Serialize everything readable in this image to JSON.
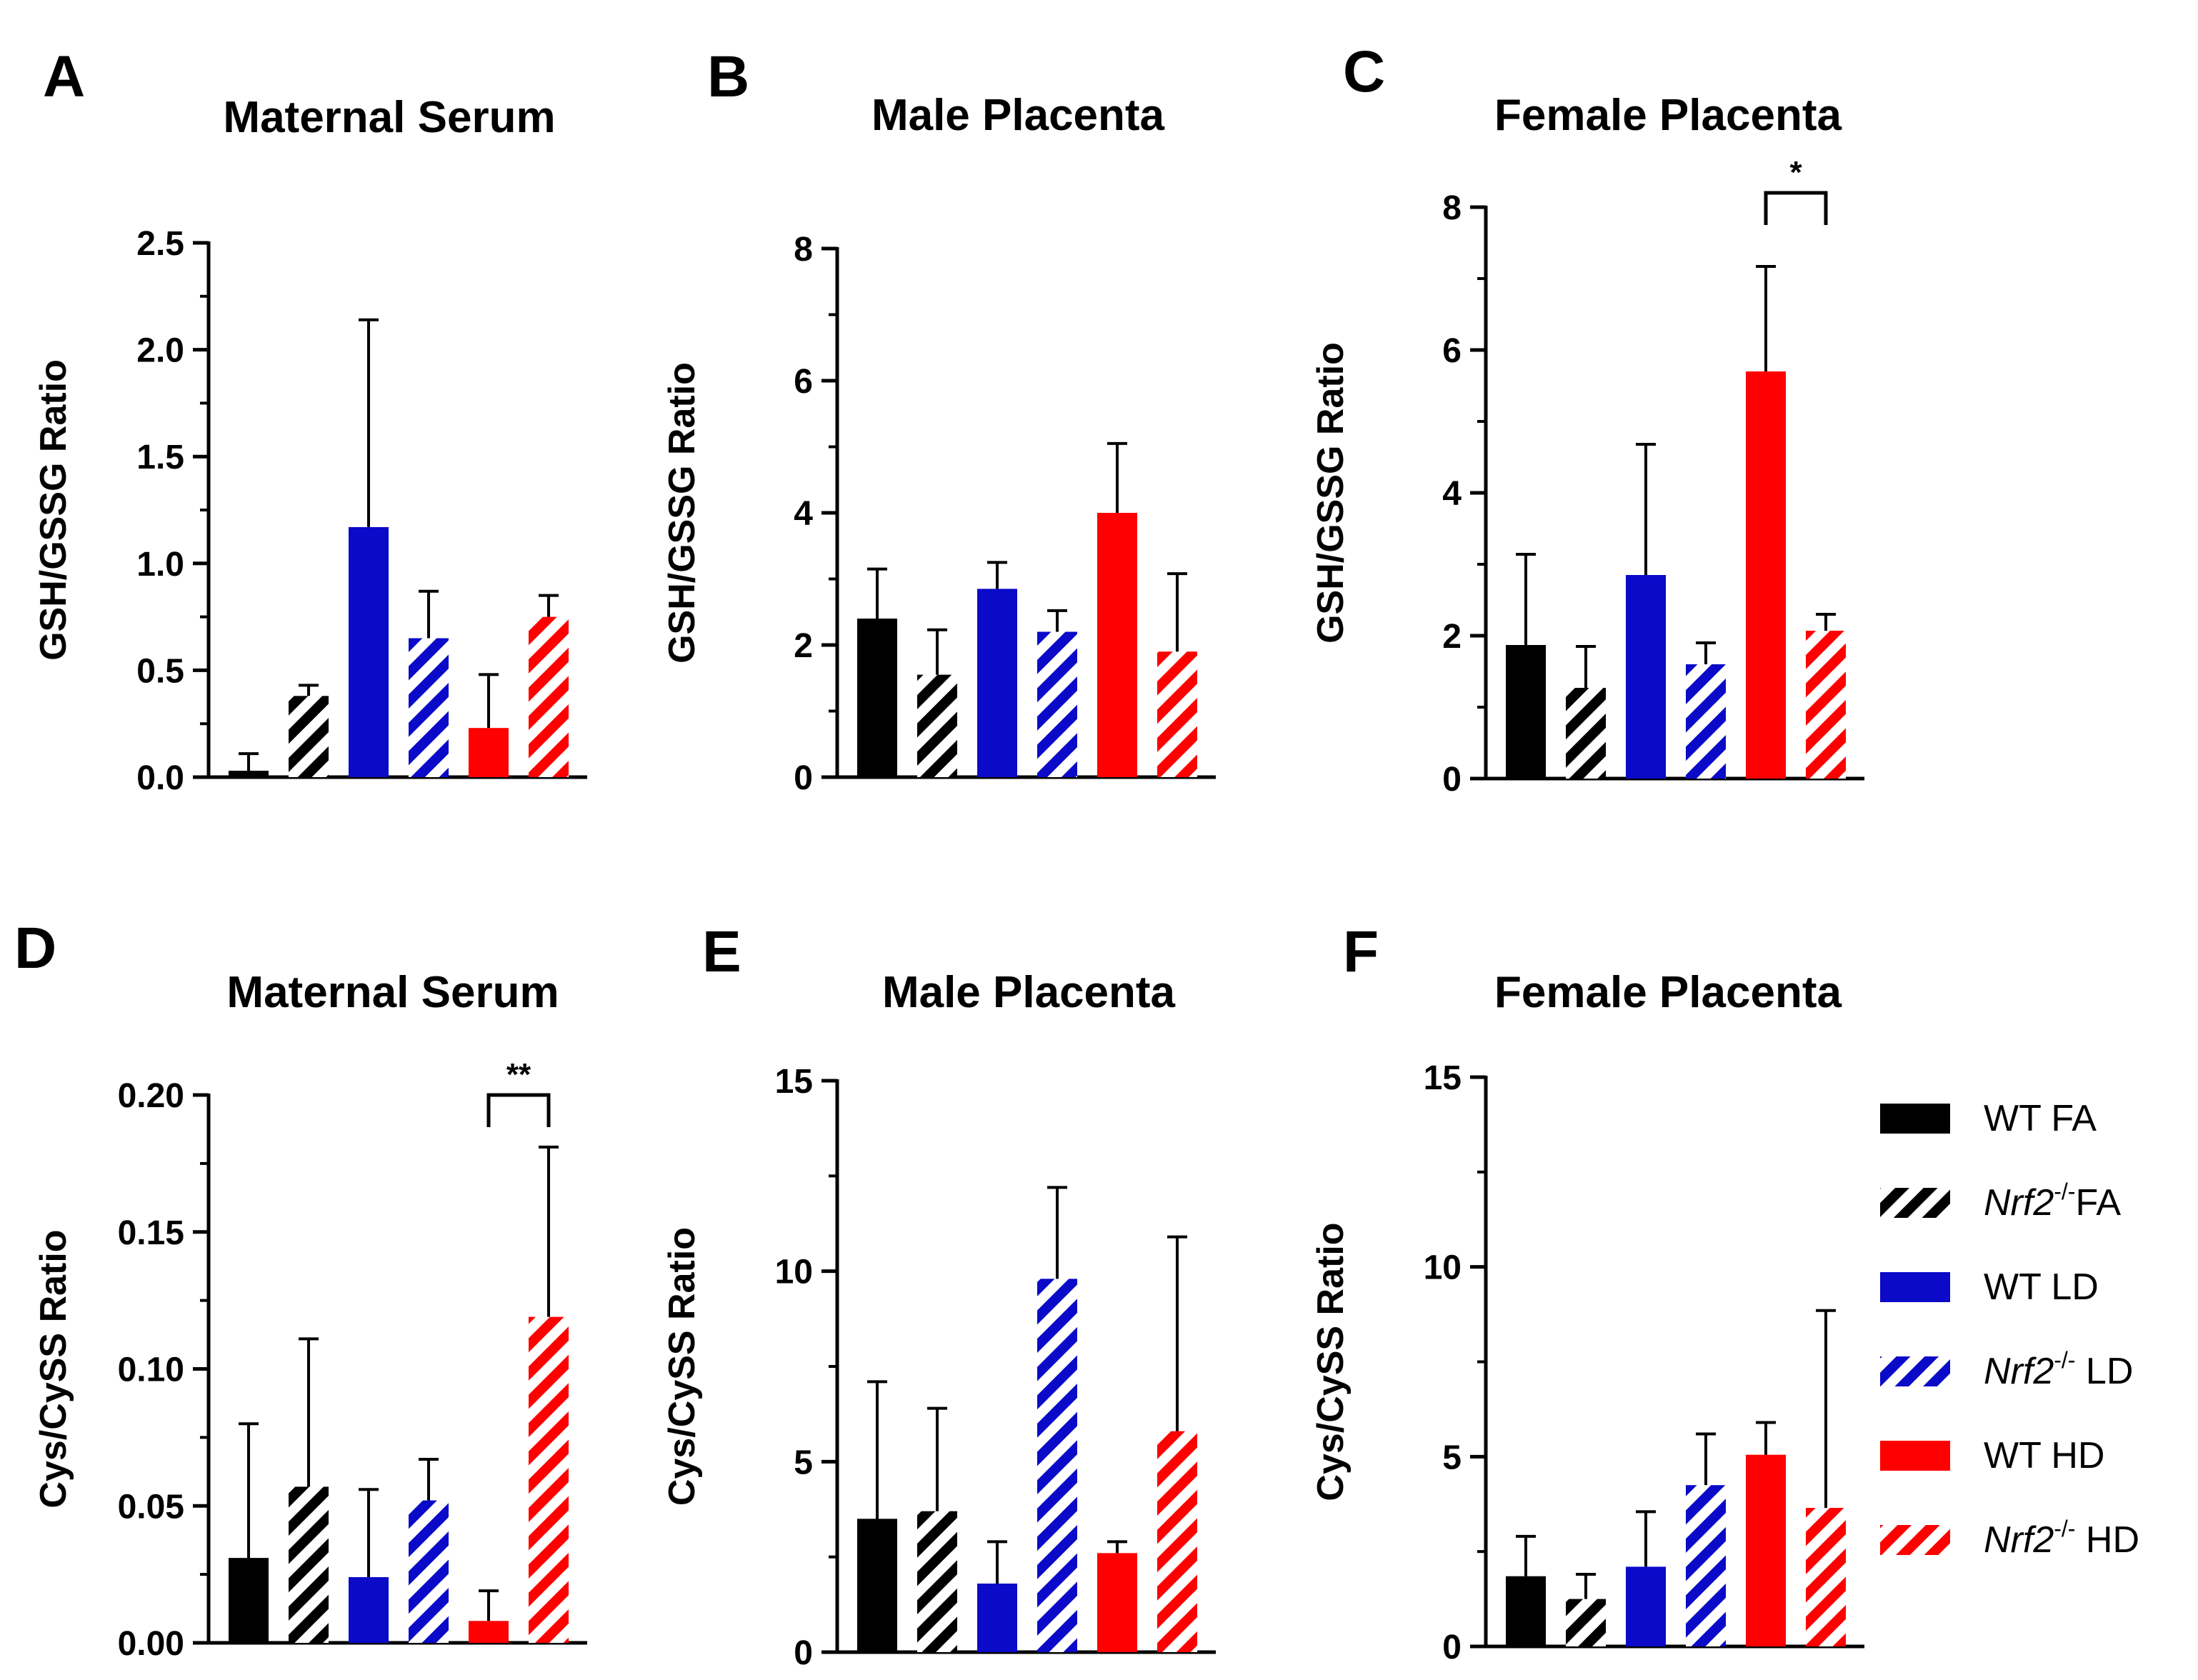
{
  "colors": {
    "black": "#000000",
    "blue": "#0a0ac8",
    "red": "#ff0000"
  },
  "legend": [
    {
      "gene": "",
      "sup": "",
      "label": "WT FA",
      "color": "#000000",
      "hatch": false
    },
    {
      "gene": "Nrf2",
      "sup": "-/-",
      "label": "FA",
      "color": "#000000",
      "hatch": true
    },
    {
      "gene": "",
      "sup": "",
      "label": "WT LD",
      "color": "#0a0ac8",
      "hatch": false
    },
    {
      "gene": "Nrf2",
      "sup": "-/-",
      "label": " LD",
      "color": "#0a0ac8",
      "hatch": true
    },
    {
      "gene": "",
      "sup": "",
      "label": "WT HD",
      "color": "#ff0000",
      "hatch": false
    },
    {
      "gene": "Nrf2",
      "sup": "-/-",
      "label": " HD",
      "color": "#ff0000",
      "hatch": true
    }
  ],
  "chart_data": [
    {
      "letter": "A",
      "type": "bar",
      "title": "Maternal Serum",
      "ylabel": "GSH/GSSG Ratio",
      "ylim": [
        0,
        2.5
      ],
      "ticks": [
        "0.0",
        "0.5",
        "1.0",
        "1.5",
        "2.0",
        "2.5"
      ],
      "minor_ticks": true,
      "categories": [
        "WT FA",
        "Nrf2-/- FA",
        "WT LD",
        "Nrf2-/- LD",
        "WT HD",
        "Nrf2-/- HD"
      ],
      "values": [
        0.03,
        0.38,
        1.17,
        0.65,
        0.23,
        0.75
      ],
      "errors": [
        0.08,
        0.05,
        0.97,
        0.22,
        0.25,
        0.1
      ],
      "significance": []
    },
    {
      "letter": "B",
      "type": "bar",
      "title": "Male Placenta",
      "ylabel": "GSH/GSSG Ratio",
      "ylim": [
        0,
        8
      ],
      "ticks": [
        "0",
        "2",
        "4",
        "6",
        "8"
      ],
      "minor_ticks": true,
      "categories": [
        "WT FA",
        "Nrf2-/- FA",
        "WT LD",
        "Nrf2-/- LD",
        "WT HD",
        "Nrf2-/- HD"
      ],
      "values": [
        2.4,
        1.55,
        2.85,
        2.2,
        4.0,
        1.9
      ],
      "errors": [
        0.75,
        0.68,
        0.4,
        0.32,
        1.05,
        1.18
      ],
      "significance": []
    },
    {
      "letter": "C",
      "type": "bar",
      "title": "Female Placenta",
      "ylabel": "GSH/GSSG Ratio",
      "ylim": [
        0,
        8
      ],
      "ticks": [
        "0",
        "2",
        "4",
        "6",
        "8"
      ],
      "minor_ticks": true,
      "categories": [
        "WT FA",
        "Nrf2-/- FA",
        "WT LD",
        "Nrf2-/- LD",
        "WT HD",
        "Nrf2-/- HD"
      ],
      "values": [
        1.87,
        1.27,
        2.85,
        1.6,
        5.7,
        2.07
      ],
      "errors": [
        1.27,
        0.58,
        1.83,
        0.3,
        1.47,
        0.23
      ],
      "significance": [
        {
          "from": 4,
          "to": 5,
          "label": "*",
          "y": 8.2
        }
      ]
    },
    {
      "letter": "D",
      "type": "bar",
      "title": "Maternal Serum",
      "ylabel": "Cys/CySS Ratio",
      "ylim": [
        0,
        0.2
      ],
      "ticks": [
        "0.00",
        "0.05",
        "0.10",
        "0.15",
        "0.20"
      ],
      "minor_ticks": true,
      "categories": [
        "WT FA",
        "Nrf2-/- FA",
        "WT LD",
        "Nrf2-/- LD",
        "WT HD",
        "Nrf2-/- HD"
      ],
      "values": [
        0.031,
        0.057,
        0.024,
        0.052,
        0.008,
        0.119
      ],
      "errors": [
        0.049,
        0.054,
        0.032,
        0.015,
        0.011,
        0.062
      ],
      "significance": [
        {
          "from": 4,
          "to": 5,
          "label": "**",
          "y": 0.2
        }
      ]
    },
    {
      "letter": "E",
      "type": "bar",
      "title": "Male Placenta",
      "ylabel": "Cys/CySS Ratio",
      "ylim": [
        0,
        15
      ],
      "ticks": [
        "0",
        "5",
        "10",
        "15"
      ],
      "minor_ticks": true,
      "categories": [
        "WT FA",
        "Nrf2-/- FA",
        "WT LD",
        "Nrf2-/- LD",
        "WT HD",
        "Nrf2-/- HD"
      ],
      "values": [
        3.5,
        3.7,
        1.8,
        9.8,
        2.6,
        5.8
      ],
      "errors": [
        3.6,
        2.7,
        1.1,
        2.4,
        0.3,
        5.1
      ],
      "significance": []
    },
    {
      "letter": "F",
      "type": "bar",
      "title": "Female Placenta",
      "ylabel": "Cys/CySS Ratio",
      "ylim": [
        0,
        15
      ],
      "ticks": [
        "0",
        "5",
        "10",
        "15"
      ],
      "minor_ticks": true,
      "categories": [
        "WT FA",
        "Nrf2-/- FA",
        "WT LD",
        "Nrf2-/- LD",
        "WT HD",
        "Nrf2-/- HD"
      ],
      "values": [
        1.85,
        1.25,
        2.1,
        4.25,
        5.05,
        3.65
      ],
      "errors": [
        1.05,
        0.65,
        1.45,
        1.35,
        0.85,
        5.2
      ],
      "significance": []
    }
  ]
}
